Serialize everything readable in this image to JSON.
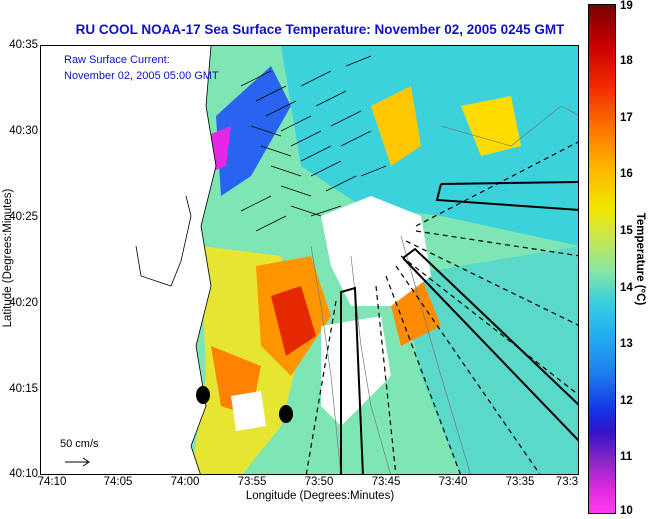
{
  "title": "RU COOL  NOAA-17  Sea Surface Temperature:  November 02, 2005 0245 GMT",
  "overlay": {
    "current_label": "Raw Surface Current:",
    "current_time": "November 02, 2005 05:00 GMT",
    "scale_label": "50 cm/s"
  },
  "axes": {
    "xlabel": "Longitude (Degrees:Minutes)",
    "ylabel": "Latitude (Degrees:Minutes)",
    "xticks": [
      "74:10",
      "74:05",
      "74:00",
      "73:55",
      "73:50",
      "73:45",
      "73:40",
      "73:35",
      "73:3"
    ],
    "yticks": [
      "40:35",
      "40:30",
      "40:25",
      "40:20",
      "40:15",
      "40:10"
    ]
  },
  "colorbar": {
    "label": "Temperature (°C)",
    "ticks": [
      "19",
      "18",
      "17",
      "16",
      "15",
      "14",
      "13",
      "12",
      "11",
      "10"
    ],
    "min": 10,
    "max": 19
  },
  "colors": {
    "title": "#1010c8",
    "land": "#ffffff",
    "cold": "#ff3cf0",
    "warm": "#c80000"
  }
}
